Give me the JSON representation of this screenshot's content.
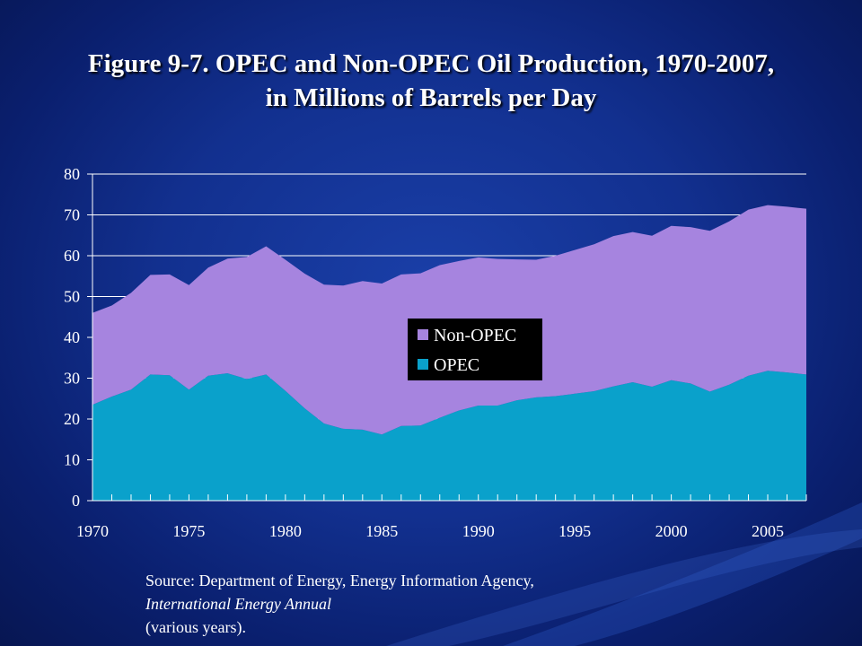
{
  "title": {
    "line1": "Figure 9-7. OPEC and Non-OPEC Oil Production, 1970-2007,",
    "line2": "in Millions of Barrels per Day"
  },
  "source": {
    "line1": "Source: Department of Energy, Energy Information Agency,",
    "line2_italic": "International Energy Annual",
    "line2_rest": " (various years)."
  },
  "colors": {
    "opec": "#0aa1cb",
    "non_opec": "#a684df",
    "grid": "#ffffff",
    "legend_bg": "#000000",
    "text": "#ffffff"
  },
  "chart_data": {
    "type": "area",
    "stacked": true,
    "x": [
      1970,
      1971,
      1972,
      1973,
      1974,
      1975,
      1976,
      1977,
      1978,
      1979,
      1980,
      1981,
      1982,
      1983,
      1984,
      1985,
      1986,
      1987,
      1988,
      1989,
      1990,
      1991,
      1992,
      1993,
      1994,
      1995,
      1996,
      1997,
      1998,
      1999,
      2000,
      2001,
      2002,
      2003,
      2004,
      2005,
      2006,
      2007
    ],
    "series": [
      {
        "name": "OPEC",
        "values": [
          23.5,
          25.5,
          27.2,
          30.9,
          30.7,
          27.2,
          30.6,
          31.2,
          29.8,
          30.9,
          26.9,
          22.6,
          18.9,
          17.6,
          17.4,
          16.2,
          18.3,
          18.4,
          20.3,
          22.1,
          23.3,
          23.3,
          24.6,
          25.3,
          25.6,
          26.2,
          26.8,
          28.0,
          29.0,
          27.9,
          29.5,
          28.7,
          26.7,
          28.4,
          30.6,
          31.8,
          31.4,
          30.9
        ]
      },
      {
        "name": "Non-OPEC",
        "values": [
          22.5,
          22.3,
          23.7,
          24.4,
          24.7,
          25.6,
          26.5,
          28.1,
          29.9,
          31.4,
          32.1,
          33.0,
          34.0,
          35.1,
          36.4,
          37.0,
          37.1,
          37.3,
          37.4,
          36.6,
          36.3,
          35.9,
          34.5,
          33.7,
          34.4,
          35.2,
          36.0,
          36.8,
          36.8,
          37.0,
          37.8,
          38.3,
          39.4,
          40.0,
          40.7,
          40.6,
          40.6,
          40.6
        ]
      }
    ],
    "x_tick_labels": [
      "1970",
      "1975",
      "1980",
      "1985",
      "1990",
      "1995",
      "2000",
      "2005"
    ],
    "y_tick_labels": [
      "0",
      "10",
      "20",
      "30",
      "40",
      "50",
      "60",
      "70",
      "80"
    ],
    "xlim": [
      1970,
      2007
    ],
    "ylim": [
      0,
      80
    ],
    "ytick_step": 10,
    "grid": "horizontal",
    "legend": {
      "placement": "center",
      "entries": [
        "Non-OPEC",
        "OPEC"
      ]
    }
  }
}
